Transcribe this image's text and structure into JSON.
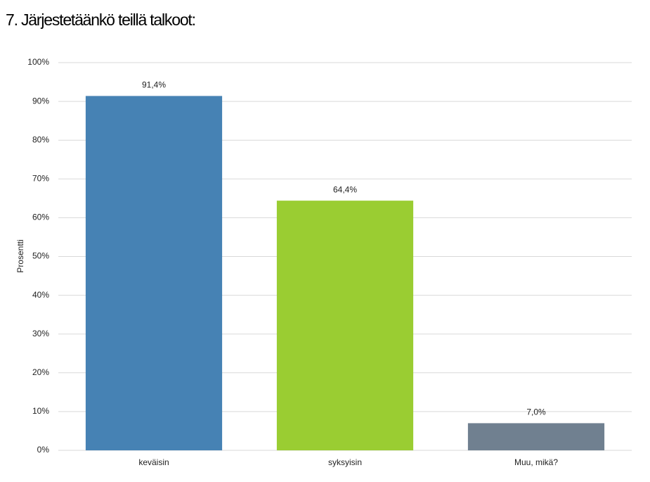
{
  "chart_data": {
    "type": "bar",
    "title": "7. Järjestetäänkö teillä talkoot:",
    "y_label": "Prosentti",
    "categories": [
      "keväisin",
      "syksyisin",
      "Muu, mikä?"
    ],
    "values": [
      91.4,
      64.4,
      7.0
    ],
    "value_labels": [
      "91,4%",
      "64,4%",
      "7,0%"
    ],
    "colors": [
      "#4682b4",
      "#9acd32",
      "#708090"
    ],
    "ylim": [
      0,
      100
    ],
    "yticks": [
      {
        "value": 0,
        "label": "0%"
      },
      {
        "value": 10,
        "label": "10%"
      },
      {
        "value": 20,
        "label": "20%"
      },
      {
        "value": 30,
        "label": "30%"
      },
      {
        "value": 40,
        "label": "40%"
      },
      {
        "value": 50,
        "label": "50%"
      },
      {
        "value": 60,
        "label": "60%"
      },
      {
        "value": 70,
        "label": "70%"
      },
      {
        "value": 80,
        "label": "80%"
      },
      {
        "value": 90,
        "label": "90%"
      },
      {
        "value": 100,
        "label": "100%"
      }
    ],
    "grid": true
  }
}
